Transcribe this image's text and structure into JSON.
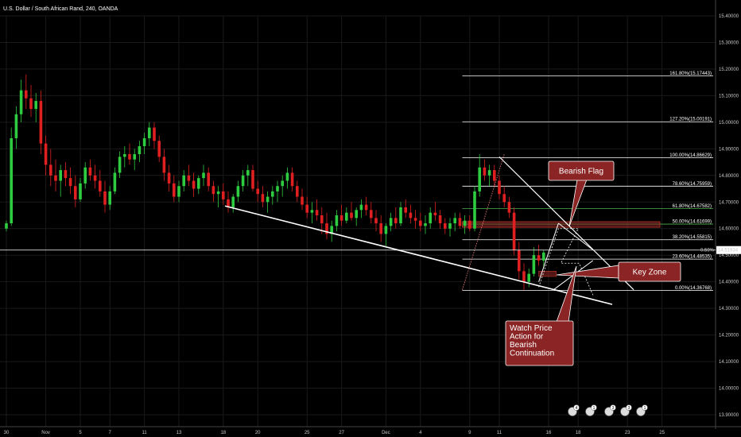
{
  "chart_data": {
    "type": "candlestick",
    "title": "U.S. Dollar / South African Rand, 240, OANDA",
    "ylim": [
      13.9,
      15.43
    ],
    "y_ticks": [
      "15.40000",
      "15.30000",
      "15.20000",
      "15.10000",
      "15.00000",
      "14.90000",
      "14.80000",
      "14.70000",
      "14.60000",
      "14.50000",
      "14.40000",
      "14.30000",
      "14.20000",
      "14.10000",
      "14.00000",
      "13.90000"
    ],
    "y_tick_values": [
      15.4,
      15.3,
      15.2,
      15.1,
      15.0,
      14.9,
      14.8,
      14.7,
      14.6,
      14.5,
      14.4,
      14.3,
      14.2,
      14.1,
      14.0,
      13.9
    ],
    "x_ticks": [
      "30",
      "Nov",
      "5",
      "7",
      "11",
      "13",
      "18",
      "20",
      "25",
      "27",
      "Dec",
      "4",
      "9",
      "11",
      "16",
      "18",
      "23",
      "25"
    ],
    "x_tick_index": [
      0,
      8,
      15,
      21,
      28,
      35,
      44,
      51,
      61,
      68,
      77,
      84,
      94,
      100,
      110,
      116,
      126,
      133
    ],
    "last_price": {
      "label": "14.51934",
      "change": "-0.59%",
      "value": 14.51934
    },
    "candles": [
      [
        14.6,
        14.63,
        14.59,
        14.62
      ],
      [
        14.62,
        14.98,
        14.61,
        14.94
      ],
      [
        14.94,
        15.06,
        14.9,
        15.03
      ],
      [
        15.03,
        15.16,
        15.0,
        15.12
      ],
      [
        15.12,
        15.18,
        15.05,
        15.09
      ],
      [
        15.09,
        15.14,
        15.02,
        15.05
      ],
      [
        15.05,
        15.11,
        15.0,
        15.08
      ],
      [
        15.08,
        15.12,
        14.88,
        14.92
      ],
      [
        14.92,
        14.95,
        14.8,
        14.84
      ],
      [
        14.84,
        14.9,
        14.76,
        14.8
      ],
      [
        14.8,
        14.86,
        14.74,
        14.78
      ],
      [
        14.78,
        14.84,
        14.72,
        14.82
      ],
      [
        14.82,
        14.85,
        14.76,
        14.79
      ],
      [
        14.79,
        14.83,
        14.73,
        14.76
      ],
      [
        14.76,
        14.8,
        14.68,
        14.71
      ],
      [
        14.71,
        14.79,
        14.7,
        14.77
      ],
      [
        14.77,
        14.85,
        14.75,
        14.83
      ],
      [
        14.83,
        14.86,
        14.78,
        14.8
      ],
      [
        14.8,
        14.84,
        14.75,
        14.78
      ],
      [
        14.78,
        14.82,
        14.72,
        14.74
      ],
      [
        14.74,
        14.78,
        14.66,
        14.69
      ],
      [
        14.69,
        14.76,
        14.67,
        14.74
      ],
      [
        14.74,
        14.83,
        14.73,
        14.81
      ],
      [
        14.81,
        14.89,
        14.79,
        14.87
      ],
      [
        14.87,
        14.91,
        14.83,
        14.88
      ],
      [
        14.88,
        14.92,
        14.84,
        14.86
      ],
      [
        14.86,
        14.9,
        14.82,
        14.88
      ],
      [
        14.88,
        14.93,
        14.85,
        14.91
      ],
      [
        14.91,
        14.96,
        14.88,
        14.94
      ],
      [
        14.94,
        15.0,
        14.91,
        14.98
      ],
      [
        14.98,
        15.0,
        14.9,
        14.93
      ],
      [
        14.93,
        14.95,
        14.85,
        14.87
      ],
      [
        14.87,
        14.9,
        14.78,
        14.81
      ],
      [
        14.81,
        14.84,
        14.74,
        14.77
      ],
      [
        14.77,
        14.8,
        14.7,
        14.72
      ],
      [
        14.72,
        14.78,
        14.7,
        14.76
      ],
      [
        14.76,
        14.82,
        14.74,
        14.8
      ],
      [
        14.8,
        14.84,
        14.76,
        14.78
      ],
      [
        14.78,
        14.81,
        14.72,
        14.75
      ],
      [
        14.75,
        14.8,
        14.73,
        14.79
      ],
      [
        14.79,
        14.84,
        14.76,
        14.81
      ],
      [
        14.81,
        14.83,
        14.74,
        14.76
      ],
      [
        14.76,
        14.78,
        14.7,
        14.73
      ],
      [
        14.73,
        14.76,
        14.68,
        14.74
      ],
      [
        14.74,
        14.77,
        14.69,
        14.71
      ],
      [
        14.71,
        14.74,
        14.66,
        14.68
      ],
      [
        14.68,
        14.73,
        14.66,
        14.72
      ],
      [
        14.72,
        14.78,
        14.7,
        14.76
      ],
      [
        14.76,
        14.82,
        14.74,
        14.8
      ],
      [
        14.8,
        14.84,
        14.76,
        14.82
      ],
      [
        14.82,
        14.84,
        14.74,
        14.75
      ],
      [
        14.75,
        14.78,
        14.7,
        14.73
      ],
      [
        14.73,
        14.76,
        14.68,
        14.7
      ],
      [
        14.7,
        14.74,
        14.66,
        14.72
      ],
      [
        14.72,
        14.76,
        14.69,
        14.74
      ],
      [
        14.74,
        14.78,
        14.7,
        14.76
      ],
      [
        14.76,
        14.8,
        14.72,
        14.78
      ],
      [
        14.78,
        14.83,
        14.75,
        14.81
      ],
      [
        14.81,
        14.83,
        14.74,
        14.76
      ],
      [
        14.76,
        14.78,
        14.7,
        14.72
      ],
      [
        14.72,
        14.75,
        14.67,
        14.69
      ],
      [
        14.69,
        14.72,
        14.64,
        14.66
      ],
      [
        14.66,
        14.7,
        14.62,
        14.67
      ],
      [
        14.67,
        14.71,
        14.63,
        14.65
      ],
      [
        14.65,
        14.68,
        14.58,
        14.62
      ],
      [
        14.62,
        14.66,
        14.56,
        14.58
      ],
      [
        14.58,
        14.63,
        14.55,
        14.61
      ],
      [
        14.61,
        14.67,
        14.59,
        14.65
      ],
      [
        14.65,
        14.69,
        14.61,
        14.63
      ],
      [
        14.63,
        14.68,
        14.62,
        14.66
      ],
      [
        14.66,
        14.7,
        14.63,
        14.64
      ],
      [
        14.64,
        14.68,
        14.61,
        14.67
      ],
      [
        14.67,
        14.71,
        14.64,
        14.69
      ],
      [
        14.69,
        14.72,
        14.65,
        14.67
      ],
      [
        14.67,
        14.7,
        14.62,
        14.64
      ],
      [
        14.64,
        14.67,
        14.59,
        14.62
      ],
      [
        14.62,
        14.65,
        14.55,
        14.58
      ],
      [
        14.58,
        14.62,
        14.53,
        14.61
      ],
      [
        14.61,
        14.66,
        14.59,
        14.64
      ],
      [
        14.64,
        14.68,
        14.6,
        14.62
      ],
      [
        14.62,
        14.7,
        14.61,
        14.68
      ],
      [
        14.68,
        14.71,
        14.64,
        14.66
      ],
      [
        14.66,
        14.69,
        14.62,
        14.64
      ],
      [
        14.64,
        14.67,
        14.6,
        14.63
      ],
      [
        14.63,
        14.66,
        14.59,
        14.61
      ],
      [
        14.61,
        14.65,
        14.58,
        14.62
      ],
      [
        14.62,
        14.68,
        14.6,
        14.66
      ],
      [
        14.66,
        14.7,
        14.63,
        14.65
      ],
      [
        14.65,
        14.67,
        14.6,
        14.62
      ],
      [
        14.62,
        14.64,
        14.58,
        14.6
      ],
      [
        14.6,
        14.64,
        14.57,
        14.62
      ],
      [
        14.62,
        14.66,
        14.59,
        14.64
      ],
      [
        14.64,
        14.66,
        14.6,
        14.61
      ],
      [
        14.61,
        14.65,
        14.58,
        14.63
      ],
      [
        14.63,
        14.65,
        14.59,
        14.6
      ],
      [
        14.6,
        14.76,
        14.59,
        14.74
      ],
      [
        14.74,
        14.88,
        14.72,
        14.83
      ],
      [
        14.83,
        14.86,
        14.78,
        14.8
      ],
      [
        14.8,
        14.84,
        14.76,
        14.82
      ],
      [
        14.82,
        14.84,
        14.76,
        14.78
      ],
      [
        14.78,
        14.8,
        14.71,
        14.73
      ],
      [
        14.73,
        14.76,
        14.68,
        14.7
      ],
      [
        14.7,
        14.72,
        14.64,
        14.66
      ],
      [
        14.66,
        14.68,
        14.5,
        14.52
      ],
      [
        14.52,
        14.55,
        14.41,
        14.44
      ],
      [
        14.44,
        14.47,
        14.37,
        14.4
      ],
      [
        14.4,
        14.45,
        14.38,
        14.43
      ],
      [
        14.43,
        14.53,
        14.42,
        14.5
      ],
      [
        14.5,
        14.54,
        14.46,
        14.48
      ],
      [
        14.48,
        14.52,
        14.45,
        14.51
      ]
    ],
    "fib_levels": [
      {
        "label": "161.80%(15.17443)",
        "value": 15.17443,
        "color": "#ffffff"
      },
      {
        "label": "127.20%(15.00191)",
        "value": 15.00191,
        "color": "#ffffff"
      },
      {
        "label": "100.00%(14.86629)",
        "value": 14.86629,
        "color": "#ffffff"
      },
      {
        "label": "78.60%(14.75959)",
        "value": 14.75959,
        "color": "#ffffff"
      },
      {
        "label": "61.80%(14.67582)",
        "value": 14.67582,
        "color": "#4caf50"
      },
      {
        "label": "50.00%(14.61699)",
        "value": 14.61699,
        "color": "#4caf50"
      },
      {
        "label": "38.20%(14.55815)",
        "value": 14.55815,
        "color": "#ffffff"
      },
      {
        "label": "23.60%(14.48535)",
        "value": 14.48535,
        "color": "#ffffff"
      },
      {
        "label": "0.00%(14.36768)",
        "value": 14.36768,
        "color": "#ffffff"
      }
    ],
    "annotations": [
      {
        "id": "bearish-flag",
        "text": "Bearish Flag"
      },
      {
        "id": "key-zone",
        "text": "Key Zone"
      },
      {
        "id": "watch-price",
        "lines": [
          "Watch Price",
          "Action for",
          "Bearish",
          "Continuation"
        ]
      }
    ],
    "event_flags": [
      "4",
      "1",
      "3",
      "3",
      "1"
    ],
    "colors": {
      "up": "#2ecc40",
      "down": "#e02020",
      "background": "#000000",
      "callout": "#8b2424",
      "grid": "#1a1a1a"
    }
  }
}
